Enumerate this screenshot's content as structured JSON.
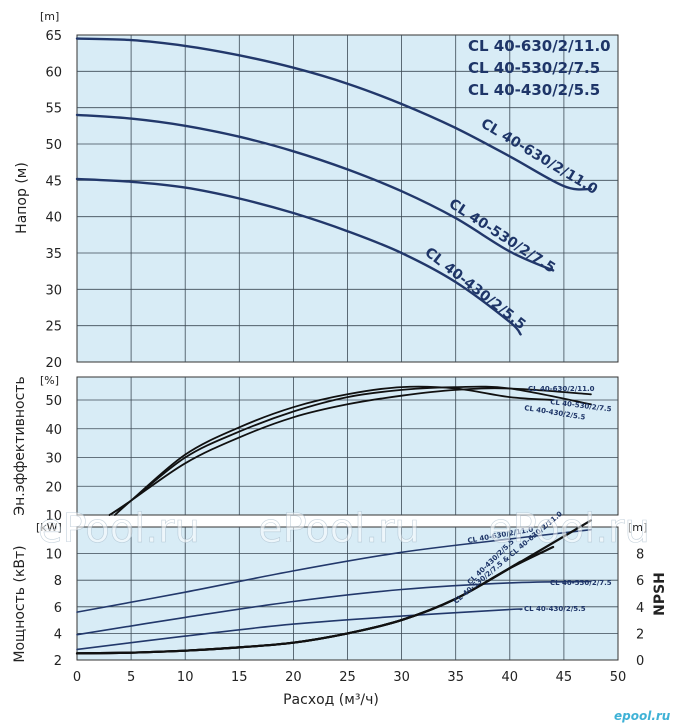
{
  "chart_data": {
    "type": "line",
    "xlabel": "Расход (м³/ч)",
    "x_ticks": [
      0,
      5,
      10,
      15,
      20,
      25,
      30,
      35,
      40,
      45,
      50
    ],
    "xlim": [
      0,
      50
    ],
    "legend_models": [
      "CL 40-630/2/11.0",
      "CL 40-530/2/7.5",
      "CL 40-430/2/5.5"
    ],
    "panels": [
      {
        "id": "head",
        "ylabel": "Напор (м)",
        "unit": "[m]",
        "ylim": [
          20,
          65
        ],
        "y_ticks": [
          20,
          25,
          30,
          35,
          40,
          45,
          50,
          55,
          60,
          65
        ],
        "series": [
          {
            "name": "CL 40-630/2/11.0",
            "x": [
              0,
              5,
              10,
              15,
              20,
              25,
              30,
              35,
              40,
              45,
              47.5
            ],
            "y": [
              64.5,
              64.3,
              63.5,
              62.2,
              60.5,
              58.3,
              55.5,
              52.2,
              48.3,
              44.2,
              43.8
            ]
          },
          {
            "name": "CL 40-530/2/7.5",
            "x": [
              0,
              5,
              10,
              15,
              20,
              25,
              30,
              35,
              40,
              44
            ],
            "y": [
              54,
              53.5,
              52.5,
              51,
              49,
              46.5,
              43.5,
              39.8,
              35.2,
              32.6
            ]
          },
          {
            "name": "CL 40-430/2/5.5",
            "x": [
              0,
              5,
              10,
              15,
              20,
              25,
              30,
              35,
              40,
              41
            ],
            "y": [
              45.2,
              44.8,
              44,
              42.5,
              40.5,
              38,
              35,
              31,
              25.5,
              23.8
            ]
          }
        ]
      },
      {
        "id": "efficiency",
        "ylabel": "Эн.эффективность",
        "unit": "[%]",
        "ylim": [
          10,
          58
        ],
        "y_ticks": [
          10,
          20,
          30,
          40,
          50
        ],
        "series": [
          {
            "name": "CL 40-630/2/11.0",
            "x": [
              3,
              5,
              10,
              15,
              20,
              25,
              30,
              35,
              40,
              47.5
            ],
            "y": [
              10,
              15,
              28,
              37,
              44,
              48.5,
              51.5,
              53.5,
              54,
              52
            ]
          },
          {
            "name": "CL 40-530/2/7.5",
            "x": [
              3,
              5,
              10,
              15,
              20,
              25,
              30,
              35,
              40,
              47.5
            ],
            "y": [
              10,
              15,
              30,
              39,
              46,
              51,
              53.5,
              54.5,
              54,
              48.5
            ]
          },
          {
            "name": "CL 40-430/2/5.5",
            "x": [
              3.5,
              5,
              10,
              15,
              20,
              25,
              30,
              35,
              40,
              44
            ],
            "y": [
              10,
              15,
              31,
              40.5,
              47.5,
              52,
              54.5,
              54,
              51,
              50
            ]
          }
        ]
      },
      {
        "id": "power",
        "ylabel": "Мощность (кВт)",
        "unit": "[kW]",
        "ylim": [
          2,
          12
        ],
        "y_ticks": [
          2,
          4,
          6,
          8,
          10
        ],
        "series": [
          {
            "name": "CL 40-630/2/11.0",
            "x": [
              0,
              10,
              20,
              30,
              40,
              47.5
            ],
            "y": [
              5.6,
              7.1,
              8.7,
              10.1,
              11.1,
              11.8
            ]
          },
          {
            "name": "CL 40-530/2/7.5",
            "x": [
              0,
              10,
              20,
              30,
              40,
              47.5
            ],
            "y": [
              3.9,
              5.2,
              6.4,
              7.3,
              7.8,
              7.9
            ]
          },
          {
            "name": "CL 40-430/2/5.5",
            "x": [
              0,
              10,
              20,
              30,
              40,
              41
            ],
            "y": [
              2.8,
              3.8,
              4.7,
              5.3,
              5.8,
              5.8
            ]
          }
        ]
      },
      {
        "id": "npsh",
        "ylabel": "NPSH",
        "unit": "[m]",
        "ylim": [
          0,
          10
        ],
        "y_ticks": [
          0,
          2,
          4,
          6,
          8
        ],
        "series": [
          {
            "name": "CL 40-630/2/11.0",
            "x": [
              0,
              5,
              10,
              15,
              20,
              25,
              30,
              35,
              40,
              47.5
            ],
            "y": [
              0.5,
              0.55,
              0.7,
              0.95,
              1.3,
              2.0,
              3.0,
              4.6,
              6.9,
              10.5
            ]
          },
          {
            "name": "CL 40-530/2/7.5 & CL 40-630/2/11.0",
            "x": [
              0,
              5,
              10,
              15,
              20,
              25,
              30,
              35,
              40,
              44
            ],
            "y": [
              0.5,
              0.55,
              0.7,
              0.95,
              1.3,
              2.0,
              3.0,
              4.6,
              6.9,
              8.5
            ]
          },
          {
            "name": "CL 40-430/2/5.5",
            "x": [
              0,
              5,
              10,
              15,
              20,
              25,
              30,
              35,
              41
            ],
            "y": [
              0.5,
              0.55,
              0.7,
              0.95,
              1.3,
              2.0,
              3.0,
              4.6,
              7.4
            ]
          }
        ]
      }
    ],
    "labels": {
      "head": [
        "CL 40-630/2/11.0",
        "CL 40-530/2/7.5",
        "CL 40-430/2/5.5"
      ],
      "efficiency": [
        "CL 40-630/2/11.0",
        "CL 40-530/2/7.5",
        "CL 40-430/2/5.5"
      ],
      "power": [
        "CL 40-630/2/11.0",
        "CL 40-530/2/7.5",
        "CL 40-430/2/5.5"
      ],
      "npsh": [
        "CL 40-430/2/5.5",
        "CL 40-530/2/7.5 & CL 40-630/2/11.0"
      ]
    }
  },
  "watermark": "ePool.ru",
  "brand": "epool.ru",
  "colors": {
    "bg": "#d8ecf6",
    "grid": "#3c4a55",
    "curve_blue": "#22386b",
    "curve_black": "#111111"
  }
}
